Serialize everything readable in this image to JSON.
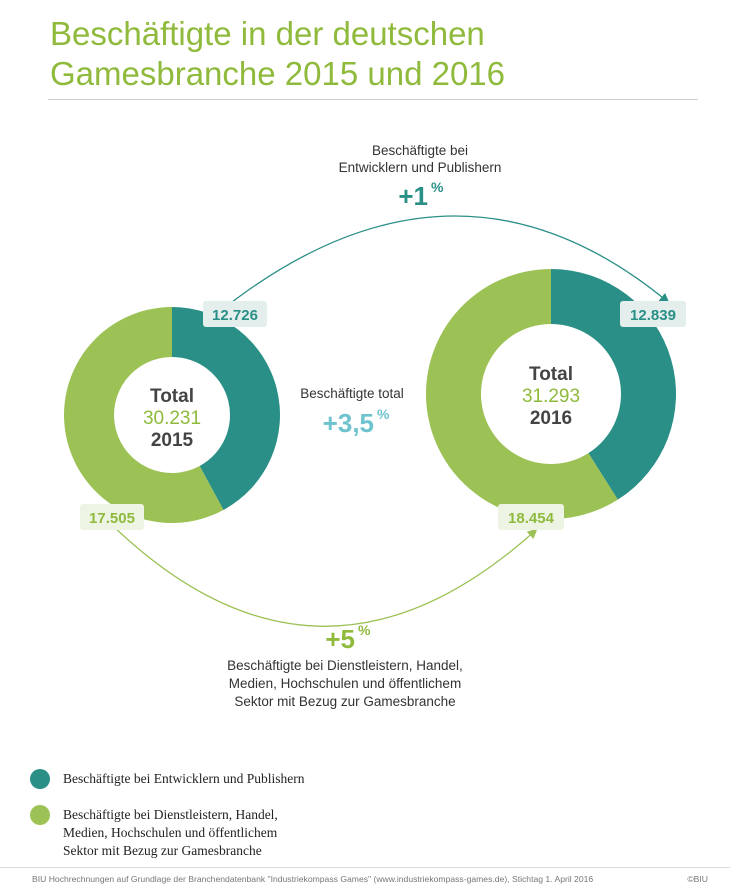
{
  "title_lines": [
    "Beschäftigte in der deutschen",
    "Gamesbranche 2015 und 2016"
  ],
  "colors": {
    "teal": "#2a8f86",
    "green": "#9cc255",
    "light_teal": "#6ec3cf",
    "title": "#8fba3c"
  },
  "chart_data": [
    {
      "type": "pie",
      "year": "2015",
      "center_label": "Total",
      "center_total": "30.231",
      "center_year": "2015",
      "slices": [
        {
          "series": "developers_publishers",
          "value": 12726,
          "label": "12.726"
        },
        {
          "series": "services",
          "value": 17505,
          "label": "17.505"
        }
      ]
    },
    {
      "type": "pie",
      "year": "2016",
      "center_label": "Total",
      "center_total": "31.293",
      "center_year": "2016",
      "slices": [
        {
          "series": "developers_publishers",
          "value": 12839,
          "label": "12.839"
        },
        {
          "series": "services",
          "value": 18454,
          "label": "18.454"
        }
      ]
    }
  ],
  "annotations": {
    "top": {
      "lines": [
        "Beschäftigte bei",
        "Entwicklern und Publishern"
      ],
      "change": "+1",
      "unit": "%"
    },
    "middle": {
      "lines": [
        "Beschäftigte total"
      ],
      "change": "+3,5",
      "unit": "%"
    },
    "bottom": {
      "change": "+5",
      "unit": "%",
      "lines": [
        "Beschäftigte bei Dienstleistern, Handel,",
        "Medien, Hochschulen und öffentlichem",
        "Sektor mit Bezug zur Gamesbranche"
      ]
    }
  },
  "legend": [
    {
      "series": "developers_publishers",
      "lines": [
        "Beschäftigte bei Entwicklern und Publishern"
      ]
    },
    {
      "series": "services",
      "lines": [
        "Beschäftigte bei Dienstleistern, Handel,",
        "Medien, Hochschulen und öffentlichem",
        "Sektor mit Bezug zur Gamesbranche"
      ]
    }
  ],
  "footer": {
    "source": "BIU Hochrechnungen auf Grundlage der Branchendatenbank \"Industriekompass Games\" (www.industriekompass-games.de), Stichtag 1. April 2016",
    "copyright": "©BIU"
  }
}
